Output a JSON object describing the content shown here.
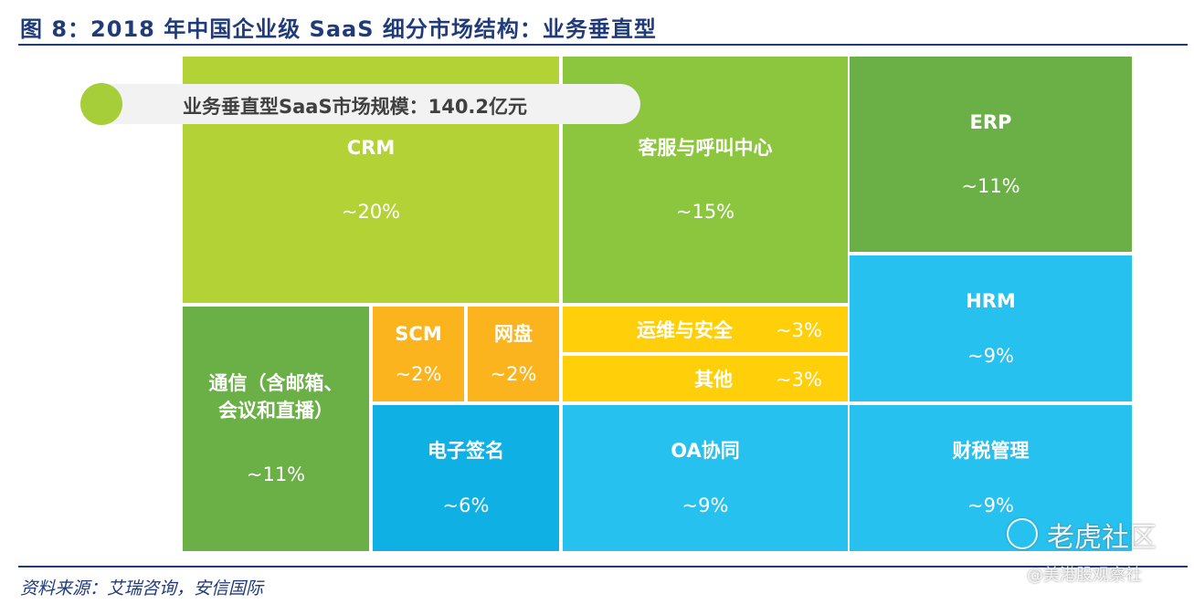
{
  "figure": {
    "title": "图 8：2018 年中国企业级 SaaS 细分市场结构：业务垂直型",
    "source": "资料来源：艾瑞咨询，安信国际",
    "badge": "业务垂直型SaaS市场规模：140.2亿元"
  },
  "watermark": {
    "main": "老虎社区",
    "sub": "@美港股观察社"
  },
  "chart_data": {
    "type": "treemap",
    "unit": "%",
    "cells": [
      {
        "label": "CRM",
        "value_label": "~20%",
        "value": 20,
        "color": "#b3d235",
        "layout": "v"
      },
      {
        "label": "客服与呼叫中心",
        "value_label": "~15%",
        "value": 15,
        "color": "#8cc63f",
        "layout": "v"
      },
      {
        "label": "ERP",
        "value_label": "~11%",
        "value": 11,
        "color": "#6ab046",
        "layout": "v"
      },
      {
        "label": "HRM",
        "value_label": "~9%",
        "value": 9,
        "color": "#27c1ef",
        "layout": "v"
      },
      {
        "label": "通信（含邮箱、\n会议和直播）",
        "value_label": "~11%",
        "value": 11,
        "color": "#6ab046",
        "layout": "v"
      },
      {
        "label": "SCM",
        "value_label": "~2%",
        "value": 2,
        "color": "#fbb41d",
        "layout": "v"
      },
      {
        "label": "网盘",
        "value_label": "~2%",
        "value": 2,
        "color": "#fbb41d",
        "layout": "v"
      },
      {
        "label": "运维与安全",
        "value_label": "~3%",
        "value": 3,
        "color": "#ffcf0a",
        "layout": "h"
      },
      {
        "label": "其他",
        "value_label": "~3%",
        "value": 3,
        "color": "#ffcf0a",
        "layout": "h"
      },
      {
        "label": "电子签名",
        "value_label": "~6%",
        "value": 6,
        "color": "#0fb0e4",
        "layout": "v"
      },
      {
        "label": "OA协同",
        "value_label": "~9%",
        "value": 9,
        "color": "#27c1ef",
        "layout": "v"
      },
      {
        "label": "财税管理",
        "value_label": "~9%",
        "value": 9,
        "color": "#27c1ef",
        "layout": "v"
      }
    ]
  }
}
